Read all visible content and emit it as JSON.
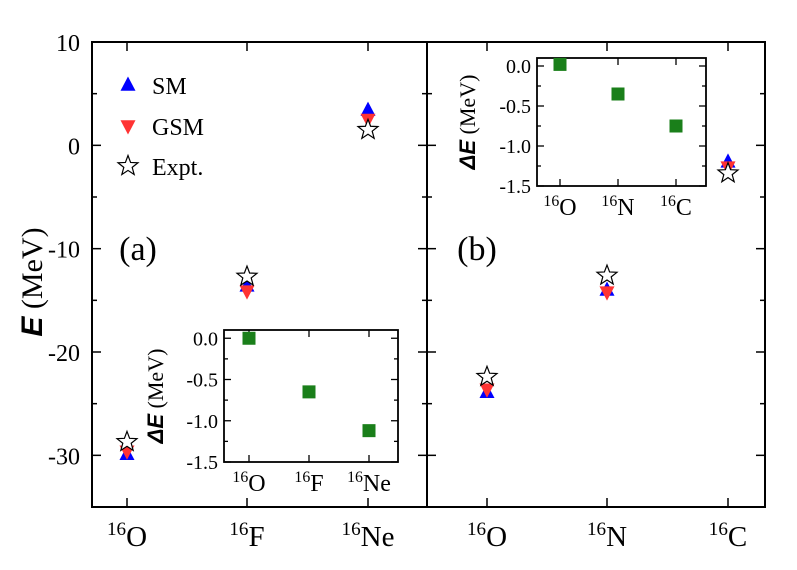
{
  "colors": {
    "sm": "#0000ff",
    "gsm": "#ff3333",
    "expt_fill": "#ffffff",
    "expt_stroke": "#000000",
    "delta": "#1a7f1a",
    "axis": "#000000"
  },
  "legend": {
    "sm": "SM",
    "gsm": "GSM",
    "expt": "Expt."
  },
  "main_ylabel": {
    "symbol": "E",
    "unit": "(MeV)"
  },
  "inset_ylabel": {
    "symbol": "ΔE",
    "unit": "(MeV)"
  },
  "chart_data": [
    {
      "panel": "a",
      "panel_label": "(a)",
      "type": "scatter",
      "categories": [
        {
          "mass": "16",
          "element": "O"
        },
        {
          "mass": "16",
          "element": "F"
        },
        {
          "mass": "16",
          "element": "Ne"
        }
      ],
      "ylabel": "E (MeV)",
      "ylim": [
        -35,
        10
      ],
      "yticks": [
        10,
        0,
        -10,
        -20,
        -30
      ],
      "ytick_labels": [
        "10",
        "0",
        "-10",
        "-20",
        "-30"
      ],
      "series": [
        {
          "name": "SM",
          "marker": "triangle-up",
          "values": [
            -29.9,
            -13.6,
            3.4
          ]
        },
        {
          "name": "GSM",
          "marker": "triangle-down",
          "values": [
            -29.6,
            -14.1,
            2.5
          ]
        },
        {
          "name": "Expt.",
          "marker": "star",
          "values": [
            -28.7,
            -12.7,
            1.5
          ]
        }
      ],
      "inset": {
        "type": "scatter",
        "categories": [
          {
            "mass": "16",
            "element": "O"
          },
          {
            "mass": "16",
            "element": "F"
          },
          {
            "mass": "16",
            "element": "Ne"
          }
        ],
        "ylabel": "ΔE (MeV)",
        "ylim": [
          -1.5,
          0.1
        ],
        "yticks": [
          0.0,
          -0.5,
          -1.0,
          -1.5
        ],
        "ytick_labels": [
          "0.0",
          "-0.5",
          "-1.0",
          "-1.5"
        ],
        "values": [
          0.0,
          -0.65,
          -1.12
        ]
      }
    },
    {
      "panel": "b",
      "panel_label": "(b)",
      "type": "scatter",
      "categories": [
        {
          "mass": "16",
          "element": "O"
        },
        {
          "mass": "16",
          "element": "N"
        },
        {
          "mass": "16",
          "element": "C"
        }
      ],
      "ylabel": "E (MeV)",
      "ylim": [
        -35,
        10
      ],
      "series": [
        {
          "name": "SM",
          "marker": "triangle-up",
          "values": [
            -23.9,
            -14.0,
            -1.6
          ]
        },
        {
          "name": "GSM",
          "marker": "triangle-down",
          "values": [
            -23.6,
            -14.2,
            -2.1
          ]
        },
        {
          "name": "Expt.",
          "marker": "star",
          "values": [
            -22.4,
            -12.6,
            -2.7
          ]
        }
      ],
      "inset": {
        "type": "scatter",
        "categories": [
          {
            "mass": "16",
            "element": "O"
          },
          {
            "mass": "16",
            "element": "N"
          },
          {
            "mass": "16",
            "element": "C"
          }
        ],
        "ylabel": "ΔE (MeV)",
        "ylim": [
          -1.5,
          0.1
        ],
        "yticks": [
          0.0,
          -0.5,
          -1.0,
          -1.5
        ],
        "ytick_labels": [
          "0.0",
          "-0.5",
          "-1.0",
          "-1.5"
        ],
        "values": [
          0.02,
          -0.35,
          -0.75
        ]
      }
    }
  ]
}
